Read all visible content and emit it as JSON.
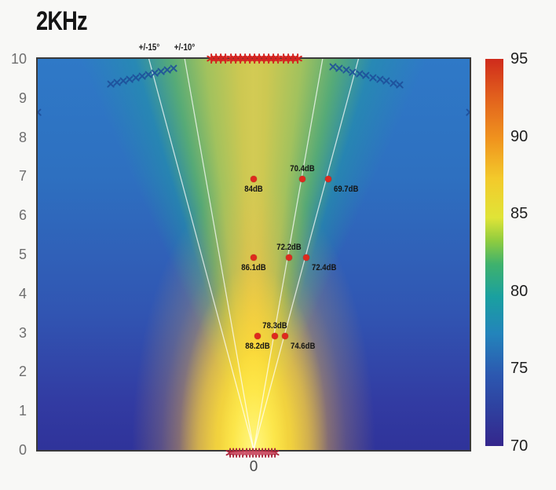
{
  "title": "2KHz",
  "colors": {
    "background": "#f8f8f6",
    "measurement_dot": "#de2a1e",
    "top_marker_red": "#d42420",
    "bottom_marker_red": "#a9243a",
    "x_marker_blue": "#1d4e9a",
    "beam_line": "#ffffff",
    "axis_text": "#6e6e6e"
  },
  "chart_data": {
    "type": "heatmap",
    "title": "2KHz",
    "xlabel": "",
    "ylabel": "",
    "xlim": [
      -5.52,
      5.52
    ],
    "ylim": [
      0,
      10
    ],
    "grid": false,
    "y_ticks": [
      10,
      9,
      8,
      7,
      6,
      5,
      4,
      3,
      2,
      1,
      0
    ],
    "x_ticks": [
      {
        "v": 0,
        "label": "0"
      }
    ],
    "colorbar": {
      "position": "right",
      "max": 95,
      "min": 70,
      "ticks": [
        "95",
        "90",
        "85",
        "80",
        "75",
        "70"
      ],
      "gradient_stops": [
        {
          "pos": 0.0,
          "color": "#cf2b1c"
        },
        {
          "pos": 0.1,
          "color": "#e2611d"
        },
        {
          "pos": 0.208,
          "color": "#f0941e"
        },
        {
          "pos": 0.31,
          "color": "#f3ca2b"
        },
        {
          "pos": 0.41,
          "color": "#e0e437"
        },
        {
          "pos": 0.47,
          "color": "#8fcc3f"
        },
        {
          "pos": 0.53,
          "color": "#3fb26c"
        },
        {
          "pos": 0.615,
          "color": "#1aa0a0"
        },
        {
          "pos": 0.71,
          "color": "#2384bb"
        },
        {
          "pos": 0.816,
          "color": "#2c58b0"
        },
        {
          "pos": 0.91,
          "color": "#2f3f9e"
        },
        {
          "pos": 1.0,
          "color": "#34268c"
        }
      ]
    },
    "beam_angle_lines": {
      "angles_deg": [
        10,
        15
      ],
      "color": "#ffffff"
    },
    "angle_labels": [
      {
        "text": "+/-15°",
        "angle_deg": 15
      },
      {
        "text": "+/-10°",
        "angle_deg": 10
      }
    ],
    "measurements": [
      {
        "x": 0.0,
        "y": 7,
        "spl_db": 84.0,
        "label": "84dB",
        "label_pos": "below"
      },
      {
        "x": 1.25,
        "y": 7,
        "spl_db": 70.4,
        "label": "70.4dB",
        "label_pos": "above"
      },
      {
        "x": 1.9,
        "y": 7,
        "spl_db": 69.7,
        "label": "69.7dB",
        "label_pos": "below-right"
      },
      {
        "x": 0.0,
        "y": 5,
        "spl_db": 86.1,
        "label": "86.1dB",
        "label_pos": "below"
      },
      {
        "x": 0.9,
        "y": 5,
        "spl_db": 72.2,
        "label": "72.2dB",
        "label_pos": "above"
      },
      {
        "x": 1.35,
        "y": 5,
        "spl_db": 72.4,
        "label": "72.4dB",
        "label_pos": "below-right"
      },
      {
        "x": 0.1,
        "y": 3,
        "spl_db": 88.2,
        "label": "88.2dB",
        "label_pos": "below"
      },
      {
        "x": 0.55,
        "y": 3,
        "spl_db": 78.3,
        "label": "78.3dB",
        "label_pos": "above"
      },
      {
        "x": 0.8,
        "y": 3,
        "spl_db": 74.6,
        "label": "74.6dB",
        "label_pos": "below-right"
      }
    ],
    "top_asterisk_row": {
      "y": 10,
      "x_from": -1.08,
      "x_to": 1.12,
      "count": 19,
      "color": "#d42420"
    },
    "bottom_marker_cluster": {
      "y": -0.09,
      "x_from": -0.6,
      "x_to": 0.55,
      "count": 15,
      "color": "#a9243a"
    },
    "x_marker_groups": [
      {
        "from": {
          "x": -3.66,
          "y": 9.35
        },
        "to": {
          "x": -2.04,
          "y": 9.76
        },
        "count": 11
      },
      {
        "from": {
          "x": 2.02,
          "y": 9.8
        },
        "to": {
          "x": 3.74,
          "y": 9.33
        },
        "count": 11
      }
    ],
    "edge_x_markers": [
      {
        "x": -5.52,
        "y": 8.63
      },
      {
        "x": 5.52,
        "y": 8.63
      }
    ]
  }
}
